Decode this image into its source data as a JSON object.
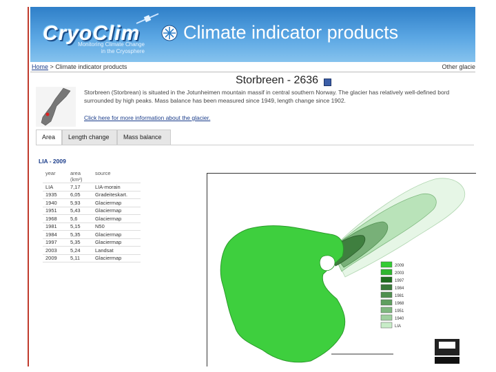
{
  "header": {
    "logo": "CryoClim",
    "tagline_line1": "Monitoring Climate Change",
    "tagline_line2": "in the Cryosphere",
    "title": "Climate indicator products"
  },
  "nav": {
    "home": "Home",
    "separator": ">",
    "current": "Climate indicator products",
    "other": "Other glacie"
  },
  "glacier": {
    "title": "Storbreen - 2636",
    "desc_line1": "Storbreen (Storbrean) is situated in the Jotunheimen mountain massif in central southern Norway. The glacier has relatively well-defined bord",
    "desc_line2": "surrounded by high peaks. Mass balance has been measured since 1949, length change since 1902.",
    "more_link": "Click here for more information about the glacier."
  },
  "tabs": [
    {
      "label": "Area",
      "active": true
    },
    {
      "label": "Length change",
      "active": false
    },
    {
      "label": "Mass balance",
      "active": false
    }
  ],
  "area_table": {
    "title": "LIA - 2009",
    "headers": [
      "year",
      "area (km²)",
      "source"
    ],
    "rows": [
      [
        "LIA",
        "7,17",
        "LIA-morain"
      ],
      [
        "1935",
        "6,05",
        "Gradeiteskart."
      ],
      [
        "1940",
        "5,93",
        "Glaciermap"
      ],
      [
        "1951",
        "5,43",
        "Glaciermap"
      ],
      [
        "1968",
        "5,6",
        "Glaciermap"
      ],
      [
        "1981",
        "5,15",
        "N50"
      ],
      [
        "1984",
        "5,35",
        "Glaciermap"
      ],
      [
        "1997",
        "5,35",
        "Glaciermap"
      ],
      [
        "2003",
        "5,24",
        "Landsat"
      ],
      [
        "2009",
        "5,11",
        "Glaciermap"
      ]
    ]
  },
  "legend": [
    {
      "label": "2009",
      "color": "#33cc33"
    },
    {
      "label": "2003",
      "color": "#2fb62f"
    },
    {
      "label": "1997",
      "color": "#1f6e1f"
    },
    {
      "label": "1984",
      "color": "#3a7a3a"
    },
    {
      "label": "1981",
      "color": "#4f8f4f"
    },
    {
      "label": "1968",
      "color": "#5f9f5f"
    },
    {
      "label": "1951",
      "color": "#7fb87f"
    },
    {
      "label": "1940",
      "color": "#9fd09f"
    },
    {
      "label": "LIA",
      "color": "#c8ecc8"
    }
  ],
  "colors": {
    "header_blue": "#2f7fc8",
    "glacier_green": "#3ecf3e",
    "link_blue": "#1a3c8a"
  }
}
